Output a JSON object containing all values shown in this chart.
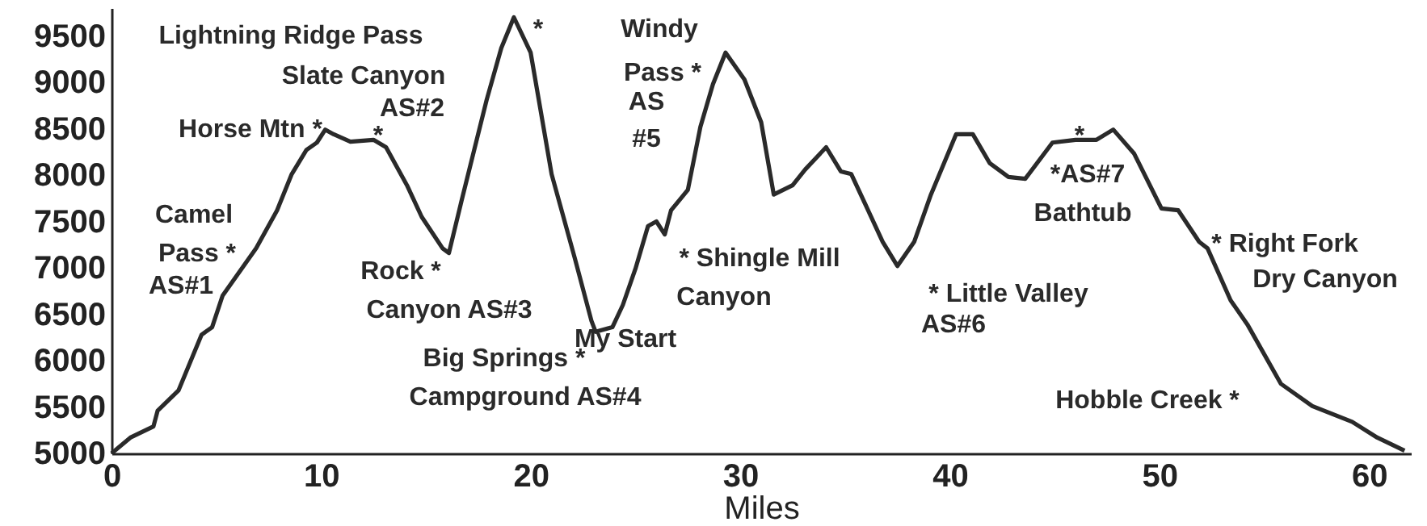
{
  "chart_data": {
    "type": "line",
    "xlabel": "Miles",
    "x": [
      0,
      0.9,
      2.0,
      2.2,
      3.2,
      4.3,
      4.8,
      5.3,
      6.9,
      7.9,
      8.6,
      9.3,
      9.8,
      10.2,
      10.6,
      11.4,
      12.5,
      13.1,
      14.1,
      14.8,
      15.8,
      16.1,
      16.7,
      17.9,
      18.6,
      19.2,
      20.0,
      21.0,
      22.1,
      22.9,
      23.1,
      23.9,
      24.4,
      25.0,
      25.6,
      26.0,
      26.4,
      26.7,
      27.5,
      28.1,
      28.7,
      29.3,
      30.2,
      31.0,
      31.6,
      32.5,
      33.1,
      34.1,
      34.8,
      35.3,
      36.0,
      36.8,
      37.5,
      38.3,
      39.1,
      40.3,
      41.1,
      41.9,
      42.8,
      43.6,
      44.9,
      46.0,
      47.0,
      47.8,
      48.8,
      50.1,
      50.9,
      51.9,
      52.3,
      53.4,
      54.2,
      55.8,
      57.3,
      59.2,
      60.4,
      61.7
    ],
    "series": [
      {
        "color": "#2a2a2a",
        "values": [
          5000,
          5170,
          5290,
          5460,
          5680,
          6280,
          6360,
          6700,
          7210,
          7620,
          8010,
          8270,
          8350,
          8490,
          8440,
          8360,
          8380,
          8300,
          7890,
          7550,
          7210,
          7160,
          7720,
          8810,
          9370,
          9700,
          9320,
          8010,
          7110,
          6430,
          6310,
          6360,
          6600,
          6990,
          7450,
          7500,
          7360,
          7620,
          7840,
          8520,
          8980,
          9320,
          9030,
          8570,
          7790,
          7890,
          8060,
          8300,
          8040,
          8010,
          7670,
          7280,
          7020,
          7280,
          7790,
          8440,
          8440,
          8130,
          7980,
          7960,
          8350,
          8380,
          8380,
          8490,
          8230,
          7640,
          7620,
          7280,
          7210,
          6650,
          6390,
          5750,
          5510,
          5340,
          5170,
          5030
        ]
      }
    ],
    "xlim": [
      0,
      62
    ],
    "xticks": [
      0,
      10,
      20,
      30,
      40,
      50,
      60
    ],
    "ylim": [
      5000,
      9800
    ],
    "yticks": [
      5000,
      5500,
      6000,
      6500,
      7000,
      7500,
      8000,
      8500,
      9000,
      9500
    ],
    "grid": false,
    "marker": "none",
    "line_style": "solid",
    "annotations": [
      "Lightning Ridge Pass",
      "*",
      "Slate Canyon",
      "AS#2",
      "*",
      "Horse Mtn *",
      "Camel",
      "Pass  *",
      "AS#1",
      "Rock *",
      "Canyon AS#3",
      "Big Springs *",
      "Campground AS#4",
      "My Start",
      "Windy",
      "Pass *",
      "AS",
      "#5",
      "* Shingle Mill",
      "Canyon",
      "* Little Valley",
      "AS#6",
      "*",
      "*AS#7",
      "Bathtub",
      "* Right Fork",
      "Dry Canyon",
      "Hobble Creek *"
    ]
  }
}
